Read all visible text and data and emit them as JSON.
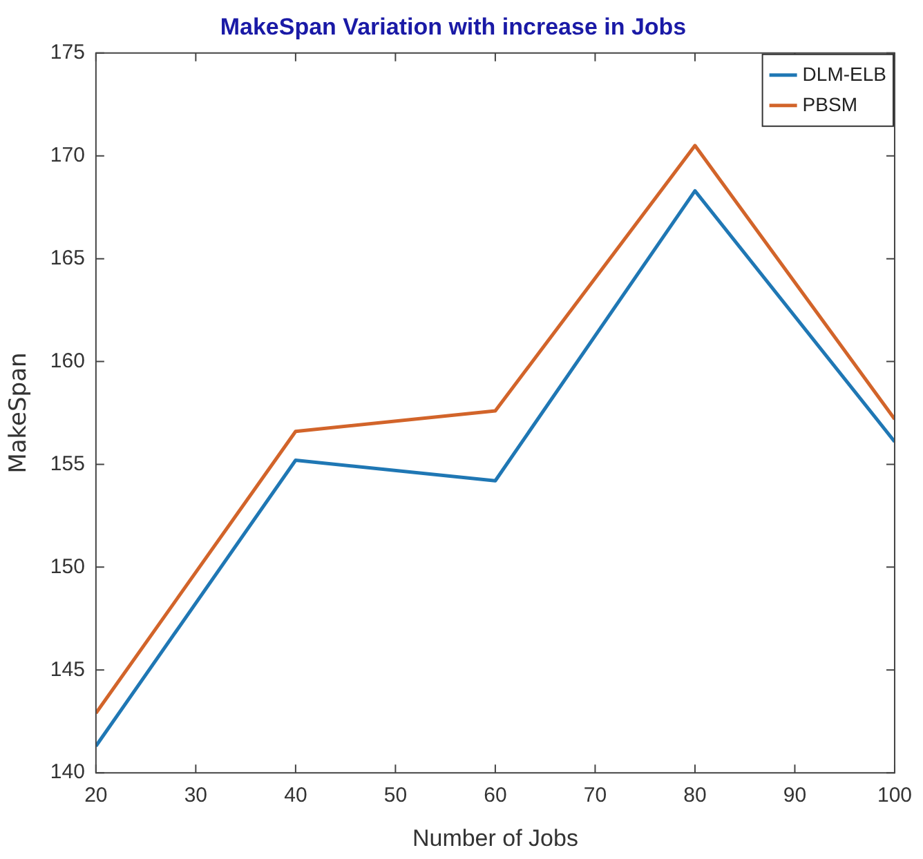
{
  "chart_data": {
    "type": "line",
    "title": "MakeSpan Variation with increase in Jobs",
    "xlabel": "Number of Jobs",
    "ylabel": "MakeSpan",
    "x": [
      20,
      40,
      60,
      80,
      100
    ],
    "series": [
      {
        "name": "DLM-ELB",
        "color": "#1f77b4",
        "values": [
          141.3,
          155.2,
          154.2,
          168.3,
          156.1
        ]
      },
      {
        "name": "PBSM",
        "color": "#d2642a",
        "values": [
          142.9,
          156.6,
          157.6,
          170.5,
          157.2
        ]
      }
    ],
    "xlim": [
      20,
      100
    ],
    "xticks": [
      20,
      30,
      40,
      50,
      60,
      70,
      80,
      90,
      100
    ],
    "ylim": [
      140,
      175
    ],
    "yticks": [
      140,
      145,
      150,
      155,
      160,
      165,
      170,
      175
    ],
    "grid": false,
    "legend": "top right",
    "marker": "none",
    "line_style": "solid"
  }
}
